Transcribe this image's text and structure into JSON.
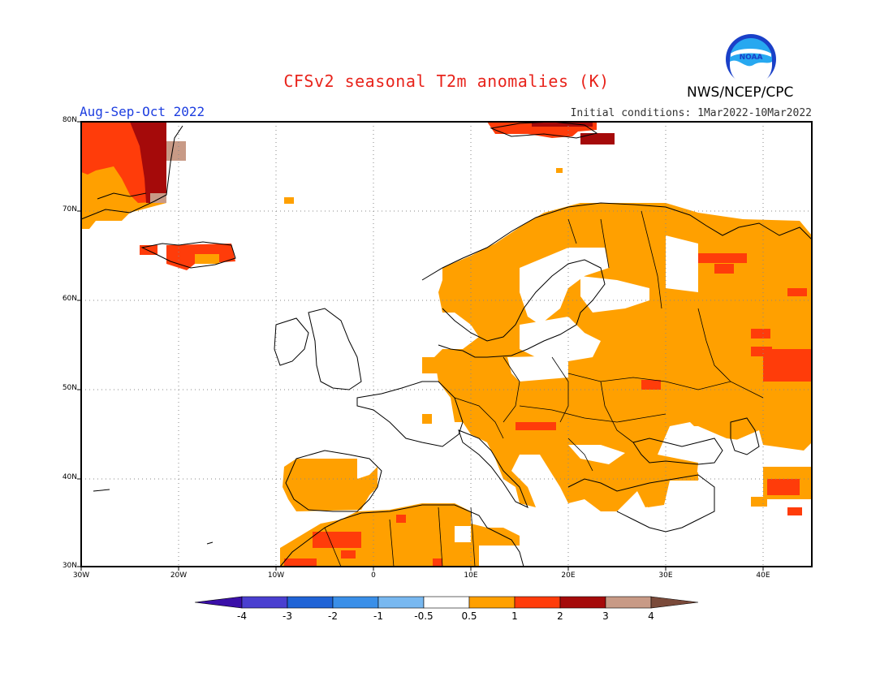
{
  "header": {
    "title": "CFSv2 seasonal T2m anomalies (K)",
    "agency": "NWS/NCEP/CPC",
    "period": "Aug-Sep-Oct 2022",
    "initial_conditions": "Initial conditions: 1Mar2022-10Mar2022",
    "logo_text": "NOAA"
  },
  "axes": {
    "lat_labels": [
      "80N",
      "70N",
      "60N",
      "50N",
      "40N",
      "30N"
    ],
    "lon_labels": [
      "30W",
      "20W",
      "10W",
      "0",
      "10E",
      "20E",
      "30E",
      "40E"
    ]
  },
  "colorbar": {
    "tick_labels": [
      "-4",
      "-3",
      "-2",
      "-1",
      "-0.5",
      "0.5",
      "1",
      "2",
      "3",
      "4"
    ],
    "colors": [
      "#3a0fa8",
      "#4a3fd0",
      "#1f63d6",
      "#3a8fe8",
      "#78b8f0",
      "#ffffff",
      "#ffa000",
      "#ff3c0a",
      "#a50a0a",
      "#c89a86",
      "#7a4a3a"
    ]
  },
  "colors": {
    "anomaly_0_5_1": "#ffa000",
    "anomaly_1_2": "#ff3c0a",
    "anomaly_2_3": "#a50a0a",
    "anomaly_3_4": "#c89a86"
  }
}
